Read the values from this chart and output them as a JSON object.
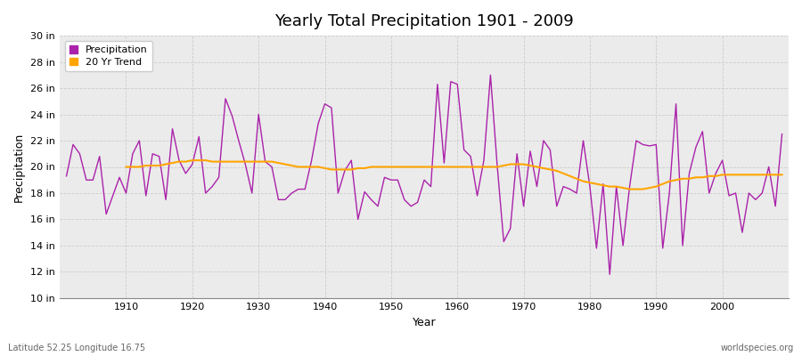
{
  "title": "Yearly Total Precipitation 1901 - 2009",
  "xlabel": "Year",
  "ylabel": "Precipitation",
  "bottom_left_label": "Latitude 52.25 Longitude 16.75",
  "bottom_right_label": "worldspecies.org",
  "precip_color": "#AA22AA",
  "trend_color": "#FFA500",
  "plot_bg_color": "#EBEBEB",
  "fig_bg_color": "#FFFFFF",
  "grid_color": "#CCCCCC",
  "ylim": [
    10,
    30
  ],
  "ytick_values": [
    10,
    12,
    14,
    16,
    18,
    20,
    22,
    24,
    26,
    28,
    30
  ],
  "ytick_labels": [
    "10 in",
    "12 in",
    "14 in",
    "16 in",
    "18 in",
    "20 in",
    "22 in",
    "24 in",
    "26 in",
    "28 in",
    "30 in"
  ],
  "xlim": [
    1900,
    2010
  ],
  "xtick_values": [
    1910,
    1920,
    1930,
    1940,
    1950,
    1960,
    1970,
    1980,
    1990,
    2000
  ],
  "years": [
    1901,
    1902,
    1903,
    1904,
    1905,
    1906,
    1907,
    1908,
    1909,
    1910,
    1911,
    1912,
    1913,
    1914,
    1915,
    1916,
    1917,
    1918,
    1919,
    1920,
    1921,
    1922,
    1923,
    1924,
    1925,
    1926,
    1927,
    1928,
    1929,
    1930,
    1931,
    1932,
    1933,
    1934,
    1935,
    1936,
    1937,
    1938,
    1939,
    1940,
    1941,
    1942,
    1943,
    1944,
    1945,
    1946,
    1947,
    1948,
    1949,
    1950,
    1951,
    1952,
    1953,
    1954,
    1955,
    1956,
    1957,
    1958,
    1959,
    1960,
    1961,
    1962,
    1963,
    1964,
    1965,
    1966,
    1967,
    1968,
    1969,
    1970,
    1971,
    1972,
    1973,
    1974,
    1975,
    1976,
    1977,
    1978,
    1979,
    1980,
    1981,
    1982,
    1983,
    1984,
    1985,
    1986,
    1987,
    1988,
    1989,
    1990,
    1991,
    1992,
    1993,
    1994,
    1995,
    1996,
    1997,
    1998,
    1999,
    2000,
    2001,
    2002,
    2003,
    2004,
    2005,
    2006,
    2007,
    2008,
    2009
  ],
  "precip": [
    19.3,
    21.7,
    21.0,
    19.0,
    19.0,
    20.8,
    16.4,
    17.8,
    19.2,
    18.0,
    21.0,
    22.0,
    17.8,
    21.0,
    20.8,
    17.5,
    22.9,
    20.5,
    19.5,
    20.2,
    22.3,
    18.0,
    18.5,
    19.2,
    25.2,
    23.9,
    22.0,
    20.2,
    18.0,
    24.0,
    20.4,
    20.0,
    17.5,
    17.5,
    18.0,
    18.3,
    18.3,
    20.5,
    23.3,
    24.8,
    24.5,
    18.0,
    19.7,
    20.5,
    16.0,
    18.1,
    17.5,
    17.0,
    19.2,
    19.0,
    19.0,
    17.5,
    17.0,
    17.3,
    19.0,
    18.5,
    26.3,
    20.3,
    26.5,
    26.3,
    21.3,
    20.8,
    17.8,
    20.5,
    27.0,
    20.2,
    14.3,
    15.3,
    21.0,
    17.0,
    21.2,
    18.5,
    22.0,
    21.3,
    17.0,
    18.5,
    18.3,
    18.0,
    22.0,
    18.5,
    13.8,
    18.7,
    11.8,
    18.5,
    14.0,
    18.5,
    22.0,
    21.7,
    21.6,
    21.7,
    13.8,
    18.0,
    24.8,
    14.0,
    19.5,
    21.5,
    22.7,
    18.0,
    19.5,
    20.5,
    17.8,
    18.0,
    15.0,
    18.0,
    17.5,
    18.0,
    20.0,
    17.0,
    22.5
  ],
  "trend_years": [
    1910,
    1911,
    1912,
    1913,
    1914,
    1915,
    1916,
    1917,
    1918,
    1919,
    1920,
    1921,
    1922,
    1923,
    1924,
    1925,
    1926,
    1927,
    1928,
    1929,
    1930,
    1931,
    1932,
    1933,
    1934,
    1935,
    1936,
    1937,
    1938,
    1939,
    1940,
    1941,
    1942,
    1943,
    1944,
    1945,
    1946,
    1947,
    1948,
    1949,
    1950,
    1951,
    1952,
    1953,
    1954,
    1955,
    1956,
    1957,
    1958,
    1959,
    1960,
    1961,
    1962,
    1963,
    1964,
    1965,
    1966,
    1967,
    1968,
    1969,
    1970,
    1971,
    1972,
    1973,
    1974,
    1975,
    1976,
    1977,
    1978,
    1979,
    1980,
    1981,
    1982,
    1983,
    1984,
    1985,
    1986,
    1987,
    1988,
    1989,
    1990,
    1991,
    1992,
    1993,
    1994,
    1995,
    1996,
    1997,
    1998,
    1999,
    2000,
    2001,
    2002,
    2003,
    2004,
    2005,
    2006,
    2007,
    2008,
    2009
  ],
  "trend": [
    20.0,
    20.0,
    20.0,
    20.1,
    20.1,
    20.1,
    20.2,
    20.3,
    20.4,
    20.4,
    20.5,
    20.5,
    20.5,
    20.4,
    20.4,
    20.4,
    20.4,
    20.4,
    20.4,
    20.4,
    20.4,
    20.4,
    20.4,
    20.3,
    20.2,
    20.1,
    20.0,
    20.0,
    20.0,
    20.0,
    19.9,
    19.8,
    19.8,
    19.8,
    19.8,
    19.9,
    19.9,
    20.0,
    20.0,
    20.0,
    20.0,
    20.0,
    20.0,
    20.0,
    20.0,
    20.0,
    20.0,
    20.0,
    20.0,
    20.0,
    20.0,
    20.0,
    20.0,
    20.0,
    20.0,
    20.0,
    20.0,
    20.1,
    20.2,
    20.2,
    20.2,
    20.1,
    20.0,
    19.9,
    19.8,
    19.7,
    19.5,
    19.3,
    19.1,
    18.9,
    18.8,
    18.7,
    18.6,
    18.5,
    18.5,
    18.4,
    18.3,
    18.3,
    18.3,
    18.4,
    18.5,
    18.7,
    18.9,
    19.0,
    19.1,
    19.1,
    19.2,
    19.2,
    19.3,
    19.3,
    19.4,
    19.4,
    19.4,
    19.4,
    19.4,
    19.4,
    19.4,
    19.4,
    19.4,
    19.4
  ]
}
